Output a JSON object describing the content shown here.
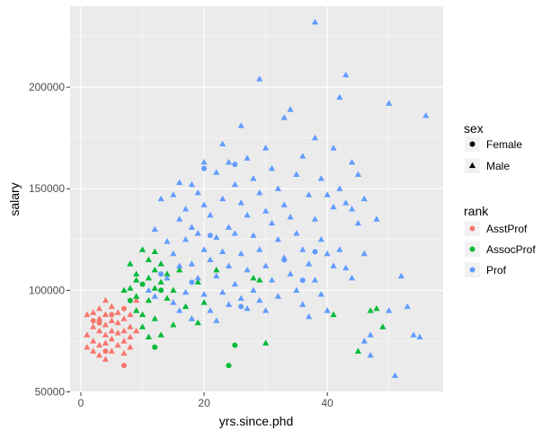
{
  "chart_data": {
    "type": "scatter",
    "title": "",
    "xlabel": "yrs.since.phd",
    "ylabel": "salary",
    "xlim": [
      -1.75,
      58.8
    ],
    "ylim": [
      49800,
      239800
    ],
    "grid": true,
    "x_ticks": [
      0,
      20,
      40
    ],
    "x_tick_labels": [
      "0",
      "20",
      "40"
    ],
    "y_ticks": [
      50000,
      100000,
      150000,
      200000
    ],
    "y_tick_labels": [
      "50000",
      "100000",
      "150000",
      "200000"
    ],
    "legend_position": "right",
    "legends": {
      "shape": {
        "title": "sex",
        "items": [
          {
            "label": "Female",
            "shape": "circle"
          },
          {
            "label": "Male",
            "shape": "triangle"
          }
        ]
      },
      "color": {
        "title": "rank",
        "items": [
          {
            "label": "AsstProf",
            "color": "#F8766D"
          },
          {
            "label": "AssocProf",
            "color": "#00BA38"
          },
          {
            "label": "Prof",
            "color": "#619CFF"
          }
        ]
      }
    },
    "point_format": "[yrs.since.phd, salary, sex]",
    "series": [
      {
        "name": "AsstProf",
        "color": "#F8766D",
        "points": [
          [
            1,
            88000,
            "M"
          ],
          [
            1,
            78000,
            "M"
          ],
          [
            1,
            72000,
            "M"
          ],
          [
            2,
            89000,
            "M"
          ],
          [
            2,
            82000,
            "M"
          ],
          [
            2,
            75000,
            "M"
          ],
          [
            2,
            70000,
            "M"
          ],
          [
            3,
            91000,
            "M"
          ],
          [
            3,
            86000,
            "M"
          ],
          [
            3,
            80000,
            "M"
          ],
          [
            3,
            73000,
            "M"
          ],
          [
            3,
            68000,
            "M"
          ],
          [
            4,
            95000,
            "M"
          ],
          [
            4,
            88000,
            "M"
          ],
          [
            4,
            83000,
            "M"
          ],
          [
            4,
            78000,
            "M"
          ],
          [
            4,
            74000,
            "M"
          ],
          [
            4,
            66000,
            "M"
          ],
          [
            5,
            92000,
            "M"
          ],
          [
            5,
            85000,
            "M"
          ],
          [
            5,
            80000,
            "M"
          ],
          [
            5,
            76000,
            "M"
          ],
          [
            5,
            70000,
            "M"
          ],
          [
            6,
            89000,
            "M"
          ],
          [
            6,
            84000,
            "M"
          ],
          [
            6,
            79000,
            "M"
          ],
          [
            6,
            73000,
            "M"
          ],
          [
            7,
            63000,
            "F"
          ],
          [
            7,
            86000,
            "M"
          ],
          [
            7,
            80000,
            "M"
          ],
          [
            7,
            75000,
            "M"
          ],
          [
            7,
            69000,
            "M"
          ],
          [
            8,
            88000,
            "M"
          ],
          [
            8,
            82000,
            "M"
          ],
          [
            8,
            77000,
            "M"
          ],
          [
            8,
            72000,
            "M"
          ],
          [
            9,
            80000,
            "M"
          ],
          [
            9,
            95000,
            "M"
          ],
          [
            3,
            84000,
            "F"
          ],
          [
            5,
            88000,
            "F"
          ],
          [
            2,
            85000,
            "F"
          ],
          [
            7,
            91000,
            "F"
          ],
          [
            4,
            70000,
            "F"
          ]
        ]
      },
      {
        "name": "AssocProf",
        "color": "#00BA38",
        "points": [
          [
            7,
            100000,
            "M"
          ],
          [
            8,
            101000,
            "M"
          ],
          [
            8,
            113000,
            "M"
          ],
          [
            9,
            105000,
            "M"
          ],
          [
            9,
            97000,
            "M"
          ],
          [
            9,
            90000,
            "M"
          ],
          [
            10,
            120000,
            "M"
          ],
          [
            10,
            88000,
            "M"
          ],
          [
            10,
            82000,
            "M"
          ],
          [
            11,
            115000,
            "M"
          ],
          [
            11,
            106000,
            "M"
          ],
          [
            11,
            95000,
            "M"
          ],
          [
            11,
            77000,
            "M"
          ],
          [
            12,
            119000,
            "M"
          ],
          [
            12,
            110000,
            "M"
          ],
          [
            12,
            101000,
            "M"
          ],
          [
            12,
            86000,
            "M"
          ],
          [
            12,
            72000,
            "F"
          ],
          [
            13,
            113000,
            "M"
          ],
          [
            13,
            104000,
            "M"
          ],
          [
            13,
            78000,
            "M"
          ],
          [
            14,
            108000,
            "M"
          ],
          [
            14,
            96000,
            "M"
          ],
          [
            15,
            100000,
            "M"
          ],
          [
            15,
            83000,
            "M"
          ],
          [
            16,
            110000,
            "M"
          ],
          [
            17,
            92000,
            "M"
          ],
          [
            18,
            86000,
            "M"
          ],
          [
            19,
            84000,
            "M"
          ],
          [
            20,
            94000,
            "M"
          ],
          [
            19,
            104000,
            "M"
          ],
          [
            22,
            110000,
            "M"
          ],
          [
            25,
            73000,
            "F"
          ],
          [
            24,
            63000,
            "F"
          ],
          [
            28,
            106000,
            "M"
          ],
          [
            29,
            105000,
            "M"
          ],
          [
            30,
            74000,
            "M"
          ],
          [
            41,
            88000,
            "M"
          ],
          [
            45,
            70000,
            "M"
          ],
          [
            47,
            90000,
            "M"
          ],
          [
            49,
            82000,
            "M"
          ],
          [
            48,
            91000,
            "M"
          ],
          [
            10,
            103000,
            "F"
          ],
          [
            13,
            100000,
            "F"
          ],
          [
            9,
            108000,
            "M"
          ],
          [
            8,
            95000,
            "F"
          ]
        ]
      },
      {
        "name": "Prof",
        "color": "#619CFF",
        "points": [
          [
            11,
            100000,
            "M"
          ],
          [
            12,
            130000,
            "M"
          ],
          [
            12,
            97000,
            "M"
          ],
          [
            13,
            145000,
            "M"
          ],
          [
            14,
            124000,
            "M"
          ],
          [
            14,
            106000,
            "M"
          ],
          [
            15,
            147000,
            "M"
          ],
          [
            15,
            118000,
            "M"
          ],
          [
            15,
            94000,
            "M"
          ],
          [
            16,
            153000,
            "M"
          ],
          [
            16,
            135000,
            "M"
          ],
          [
            16,
            112000,
            "M"
          ],
          [
            16,
            90000,
            "M"
          ],
          [
            17,
            125000,
            "M"
          ],
          [
            17,
            140000,
            "M"
          ],
          [
            17,
            99000,
            "M"
          ],
          [
            18,
            152000,
            "M"
          ],
          [
            18,
            131000,
            "M"
          ],
          [
            18,
            113000,
            "M"
          ],
          [
            18,
            86000,
            "M"
          ],
          [
            19,
            128000,
            "M"
          ],
          [
            19,
            148000,
            "M"
          ],
          [
            19,
            106000,
            "M"
          ],
          [
            20,
            163000,
            "M"
          ],
          [
            20,
            142000,
            "M"
          ],
          [
            20,
            120000,
            "M"
          ],
          [
            20,
            98000,
            "M"
          ],
          [
            21,
            137000,
            "M"
          ],
          [
            21,
            115000,
            "M"
          ],
          [
            21,
            90000,
            "M"
          ],
          [
            22,
            158000,
            "M"
          ],
          [
            22,
            126000,
            "M"
          ],
          [
            22,
            107000,
            "M"
          ],
          [
            22,
            85000,
            "M"
          ],
          [
            23,
            172000,
            "M"
          ],
          [
            23,
            145000,
            "M"
          ],
          [
            23,
            119000,
            "M"
          ],
          [
            23,
            99000,
            "M"
          ],
          [
            24,
            163000,
            "M"
          ],
          [
            24,
            131000,
            "M"
          ],
          [
            24,
            112000,
            "M"
          ],
          [
            24,
            93000,
            "M"
          ],
          [
            25,
            152000,
            "M"
          ],
          [
            25,
            128000,
            "M"
          ],
          [
            25,
            103000,
            "M"
          ],
          [
            26,
            181000,
            "M"
          ],
          [
            26,
            143000,
            "M"
          ],
          [
            26,
            118000,
            "M"
          ],
          [
            26,
            96000,
            "M"
          ],
          [
            27,
            165000,
            "M"
          ],
          [
            27,
            137000,
            "M"
          ],
          [
            27,
            110000,
            "M"
          ],
          [
            27,
            91000,
            "M"
          ],
          [
            28,
            155000,
            "M"
          ],
          [
            28,
            127000,
            "M"
          ],
          [
            28,
            100000,
            "M"
          ],
          [
            29,
            204000,
            "M"
          ],
          [
            29,
            148000,
            "M"
          ],
          [
            29,
            120000,
            "M"
          ],
          [
            29,
            95000,
            "M"
          ],
          [
            30,
            170000,
            "M"
          ],
          [
            30,
            139000,
            "M"
          ],
          [
            30,
            112000,
            "M"
          ],
          [
            30,
            90000,
            "M"
          ],
          [
            31,
            160000,
            "M"
          ],
          [
            31,
            133000,
            "M"
          ],
          [
            31,
            105000,
            "M"
          ],
          [
            32,
            150000,
            "M"
          ],
          [
            32,
            125000,
            "M"
          ],
          [
            32,
            97000,
            "M"
          ],
          [
            33,
            185000,
            "M"
          ],
          [
            33,
            142000,
            "M"
          ],
          [
            33,
            116000,
            "M"
          ],
          [
            34,
            189000,
            "M"
          ],
          [
            34,
            136000,
            "M"
          ],
          [
            34,
            108000,
            "M"
          ],
          [
            35,
            157000,
            "M"
          ],
          [
            35,
            128000,
            "M"
          ],
          [
            35,
            100000,
            "M"
          ],
          [
            36,
            166000,
            "M"
          ],
          [
            36,
            120000,
            "M"
          ],
          [
            36,
            93000,
            "M"
          ],
          [
            37,
            147000,
            "M"
          ],
          [
            37,
            113000,
            "M"
          ],
          [
            37,
            87000,
            "M"
          ],
          [
            38,
            232000,
            "M"
          ],
          [
            38,
            175000,
            "M"
          ],
          [
            38,
            135000,
            "M"
          ],
          [
            38,
            105000,
            "M"
          ],
          [
            39,
            155000,
            "M"
          ],
          [
            39,
            125000,
            "M"
          ],
          [
            39,
            98000,
            "M"
          ],
          [
            40,
            147000,
            "M"
          ],
          [
            40,
            118000,
            "M"
          ],
          [
            40,
            90000,
            "M"
          ],
          [
            41,
            170000,
            "M"
          ],
          [
            41,
            141000,
            "M"
          ],
          [
            41,
            112000,
            "M"
          ],
          [
            42,
            195000,
            "M"
          ],
          [
            42,
            150000,
            "M"
          ],
          [
            42,
            120000,
            "M"
          ],
          [
            43,
            206000,
            "M"
          ],
          [
            43,
            143000,
            "M"
          ],
          [
            43,
            111000,
            "M"
          ],
          [
            44,
            163000,
            "M"
          ],
          [
            44,
            140000,
            "M"
          ],
          [
            44,
            106000,
            "M"
          ],
          [
            45,
            157000,
            "M"
          ],
          [
            45,
            133000,
            "M"
          ],
          [
            46,
            145000,
            "M"
          ],
          [
            46,
            118000,
            "M"
          ],
          [
            46,
            75000,
            "M"
          ],
          [
            47,
            78000,
            "M"
          ],
          [
            47,
            68000,
            "M"
          ],
          [
            48,
            135000,
            "M"
          ],
          [
            50,
            90000,
            "M"
          ],
          [
            50,
            192000,
            "M"
          ],
          [
            51,
            58000,
            "M"
          ],
          [
            52,
            107000,
            "M"
          ],
          [
            53,
            92000,
            "M"
          ],
          [
            54,
            78000,
            "M"
          ],
          [
            55,
            77000,
            "M"
          ],
          [
            56,
            186000,
            "M"
          ],
          [
            13,
            108000,
            "F"
          ],
          [
            20,
            160000,
            "F"
          ],
          [
            21,
            127000,
            "F"
          ],
          [
            25,
            162000,
            "F"
          ],
          [
            33,
            115000,
            "F"
          ],
          [
            36,
            105000,
            "F"
          ],
          [
            38,
            119000,
            "F"
          ],
          [
            26,
            92000,
            "F"
          ],
          [
            18,
            104000,
            "F"
          ]
        ]
      }
    ]
  }
}
